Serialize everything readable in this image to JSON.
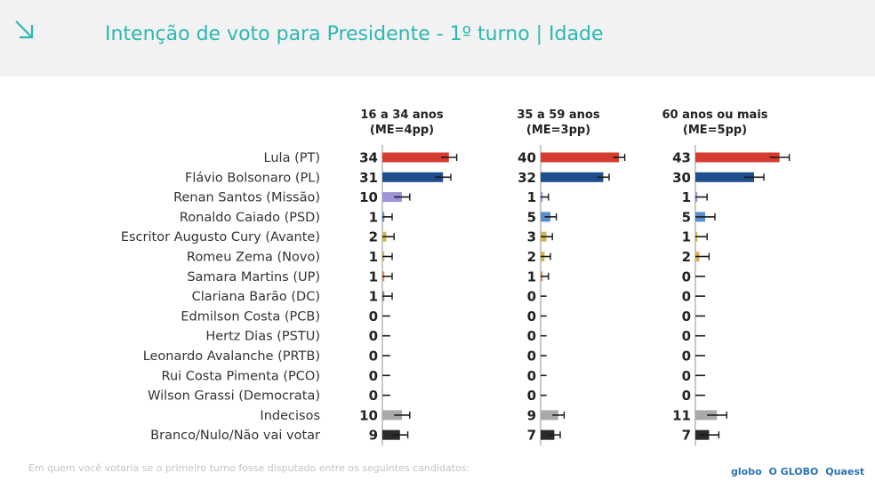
{
  "header": {
    "title": "Intenção de voto para Presidente - 1º turno | Idade",
    "icon": "arrow-down-right-icon"
  },
  "chart_data": {
    "type": "bar",
    "orientation": "horizontal",
    "categories": [
      "Lula (PT)",
      "Flávio Bolsonaro (PL)",
      "Renan Santos (Missão)",
      "Ronaldo Caiado (PSD)",
      "Escritor Augusto Cury (Avante)",
      "Romeu Zema (Novo)",
      "Samara Martins (UP)",
      "Clariana Barão (DC)",
      "Edmilson Costa (PCB)",
      "Hertz Dias (PSTU)",
      "Leonardo Avalanche (PRTB)",
      "Rui Costa Pimenta (PCO)",
      "Wilson Grassi (Democrata)",
      "Indecisos",
      "Branco/Nulo/Não vai votar"
    ],
    "colors": [
      "#d63b2f",
      "#1f4e8c",
      "#9e94d8",
      "#5b8fcf",
      "#d6b44f",
      "#d6b44f",
      "#e08a5a",
      "#8a8a8a",
      "#8a8a8a",
      "#8a8a8a",
      "#8a8a8a",
      "#8a8a8a",
      "#8a8a8a",
      "#a9a9a9",
      "#2b2b2b"
    ],
    "series": [
      {
        "name": "16 a 34 anos",
        "subtitle": "(ME=4pp)",
        "margin_of_error": 4,
        "values": [
          34,
          31,
          10,
          1,
          2,
          1,
          1,
          1,
          0,
          0,
          0,
          0,
          0,
          10,
          9
        ]
      },
      {
        "name": "35 a 59 anos",
        "subtitle": "(ME=3pp)",
        "margin_of_error": 3,
        "values": [
          40,
          32,
          1,
          5,
          3,
          2,
          1,
          0,
          0,
          0,
          0,
          0,
          0,
          9,
          7
        ]
      },
      {
        "name": "60 anos ou mais",
        "subtitle": "(ME=5pp)",
        "margin_of_error": 5,
        "values": [
          43,
          30,
          1,
          5,
          1,
          2,
          0,
          0,
          0,
          0,
          0,
          0,
          0,
          11,
          7
        ]
      }
    ],
    "xlim": [
      0,
      50
    ]
  },
  "footer": {
    "note": "Em quem você votaria se o primeiro turno fosse disputado entre os seguintes candidatos:",
    "logos": [
      "globo",
      "O GLOBO",
      "Quaest"
    ]
  }
}
